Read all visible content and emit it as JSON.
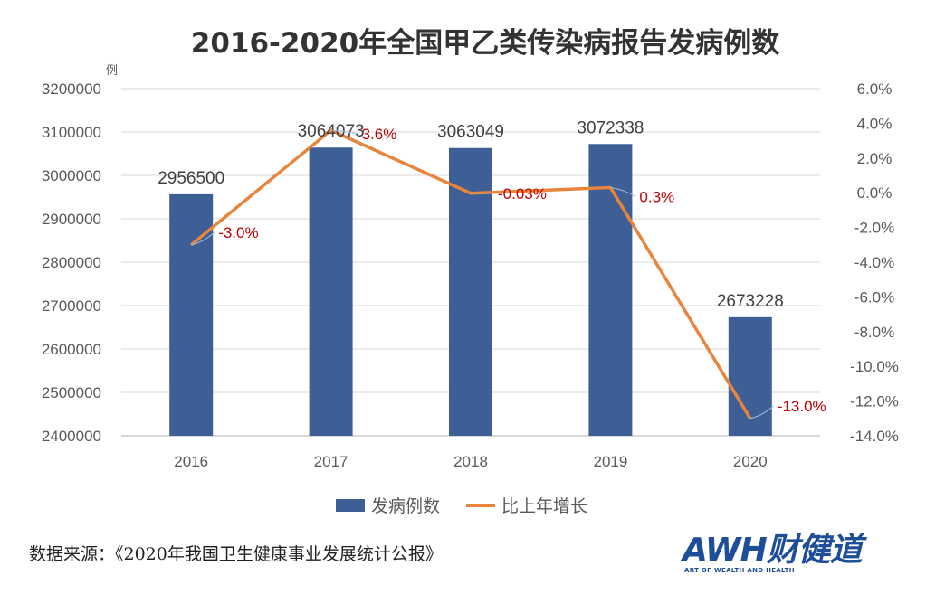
{
  "chart_data": {
    "type": "bar",
    "title": "2016-2020年全国甲乙类传染病报告发病例数",
    "y_unit": "例",
    "categories": [
      "2016",
      "2017",
      "2018",
      "2019",
      "2020"
    ],
    "series": [
      {
        "name": "发病例数",
        "type": "bar",
        "axis": "left",
        "values": [
          2956500,
          3064073,
          3063049,
          3072338,
          2673228
        ],
        "labels": [
          "2956500",
          "3064073",
          "3063049",
          "3072338",
          "2673228"
        ],
        "color": "#3e5f96"
      },
      {
        "name": "比上年增长",
        "type": "line",
        "axis": "right",
        "values": [
          -3.0,
          3.6,
          -0.03,
          0.3,
          -13.0
        ],
        "labels": [
          "-3.0%",
          "3.6%",
          "-0.03%",
          "0.3%",
          "-13.0%"
        ],
        "color": "#e8843c"
      }
    ],
    "ylim_left": [
      2400000,
      3200000
    ],
    "yticks_left": [
      "3200000",
      "3100000",
      "3000000",
      "2900000",
      "2800000",
      "2700000",
      "2600000",
      "2500000",
      "2400000"
    ],
    "ylim_right": [
      -14.0,
      6.0
    ],
    "yticks_right": [
      "6.0%",
      "4.0%",
      "2.0%",
      "0.0%",
      "-2.0%",
      "-4.0%",
      "-6.0%",
      "-8.0%",
      "-10.0%",
      "-12.0%",
      "-14.0%"
    ],
    "grid": true,
    "legend": "bottom",
    "label_color": "#c00000"
  },
  "source": {
    "text": "数据来源：《2020年我国卫生健康事业发展统计公报》"
  },
  "logo": {
    "main": "AWH财健道",
    "sub": "ART OF WEALTH AND HEALTH"
  }
}
